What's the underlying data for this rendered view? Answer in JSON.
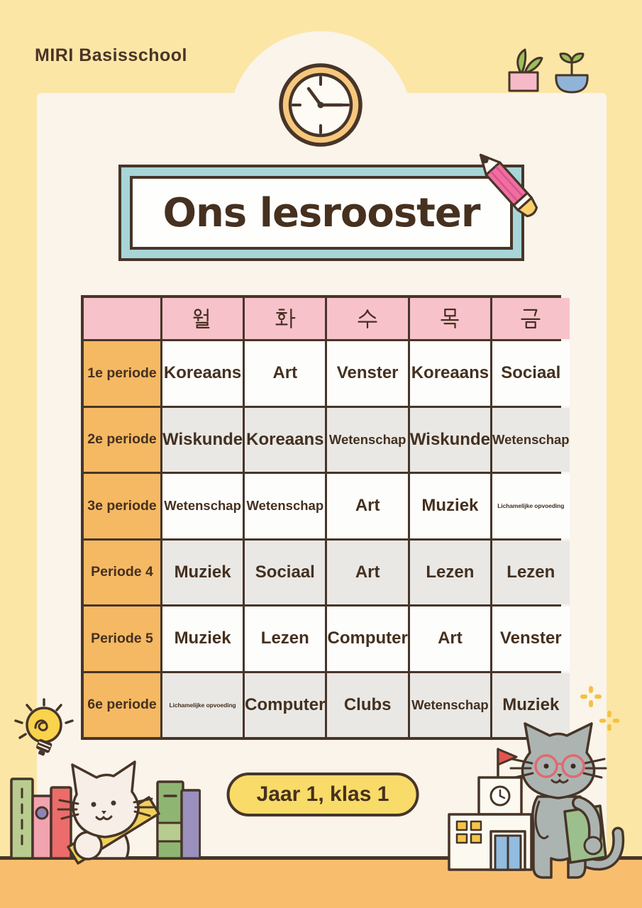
{
  "poster": {
    "school_name": "MIRI Basisschool",
    "title": "Ons lesrooster",
    "class_label": "Jaar 1, klas 1"
  },
  "schedule": {
    "corner_label": "",
    "days": [
      "월",
      "화",
      "수",
      "목",
      "금"
    ],
    "periods": [
      "1e periode",
      "2e periode",
      "3e periode",
      "Periode 4",
      "Periode 5",
      "6e periode"
    ],
    "rows": [
      [
        "Koreaans",
        "Art",
        "Venster",
        "Koreaans",
        "Sociaal"
      ],
      [
        "Wiskunde",
        "Koreaans",
        "Wetenschap",
        "Wiskunde",
        "Wetenschap"
      ],
      [
        "Wetenschap",
        "Wetenschap",
        "Art",
        "Muziek",
        "Lichamelijke opvoeding"
      ],
      [
        "Muziek",
        "Sociaal",
        "Art",
        "Lezen",
        "Lezen"
      ],
      [
        "Muziek",
        "Lezen",
        "Computer",
        "Art",
        "Venster"
      ],
      [
        "Lichamelijke opvoeding",
        "Computer",
        "Clubs",
        "Wetenschap",
        "Muziek"
      ]
    ]
  },
  "style": {
    "background": "#FBE6A6",
    "panel": "#FAF4EB",
    "floor": "#F9BD6E",
    "outline_brown": "#473528",
    "day_header_pink": "#F8C2CB",
    "period_orange": "#F5B963",
    "row_white": "#FDFDFC",
    "row_gray": "#E9E8E5",
    "title_box_teal": "#A7D5D8",
    "pill_yellow": "#F9DB69",
    "pencil_pink": "#F06EA0",
    "plant_green": "#9DBE5C"
  },
  "decorations": [
    "wall-clock-icon",
    "potted-plants-icon",
    "pencil-icon",
    "lightbulb-icon",
    "books-and-cat-illustration",
    "teacher-cat-illustration",
    "school-building-icon",
    "sparkles-icon"
  ]
}
